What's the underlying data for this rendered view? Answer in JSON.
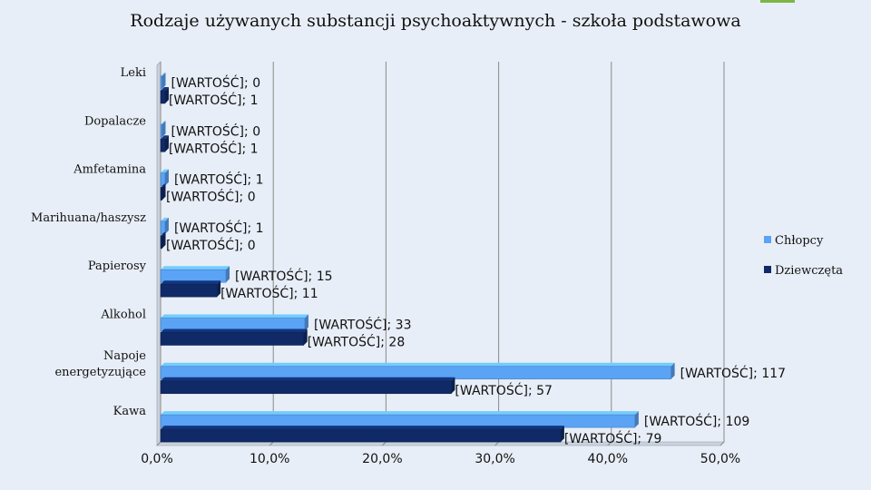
{
  "slide": {
    "accent_color": "#7ab648",
    "background": "#e8eef7"
  },
  "chart_data": {
    "type": "bar",
    "orientation": "horizontal",
    "title": "Rodzaje używanych substancji psychoaktywnych - szkoła podstawowa",
    "categories": [
      "Leki",
      "Dopalacze",
      "Amfetamina",
      "Marihuana/haszysz",
      "Papierosy",
      "Alkohol",
      "Napoje energetyzujące",
      "Kawa"
    ],
    "series": [
      {
        "name": "Chłopcy",
        "color": "#5ba3f5",
        "values": [
          0.0,
          0.0,
          0.4,
          0.4,
          5.8,
          12.8,
          45.3,
          42.1
        ],
        "labels": [
          "[WARTOŚĆ]; 0",
          "[WARTOŚĆ]; 0",
          "[WARTOŚĆ]; 1",
          "[WARTOŚĆ]; 1",
          "[WARTOŚĆ]; 15",
          "[WARTOŚĆ]; 33",
          "[WARTOŚĆ]; 117",
          "[WARTOŚĆ]; 109"
        ]
      },
      {
        "name": "Dziewczęta",
        "color": "#0f2a66",
        "values": [
          0.4,
          0.4,
          0.0,
          0.0,
          5.0,
          12.7,
          25.8,
          35.5
        ],
        "labels": [
          "[WARTOŚĆ]; 1",
          "[WARTOŚĆ]; 1",
          "[WARTOŚĆ]; 0",
          "[WARTOŚĆ]; 0",
          "[WARTOŚĆ]; 11",
          "[WARTOŚĆ]; 28",
          "[WARTOŚĆ]; 57",
          "[WARTOŚĆ]; 79"
        ]
      }
    ],
    "xlim": [
      0,
      50
    ],
    "xticks": [
      "0,0%",
      "10,0%",
      "20,0%",
      "30,0%",
      "40,0%",
      "50,0%"
    ],
    "grid": true,
    "legend_position": "right"
  }
}
